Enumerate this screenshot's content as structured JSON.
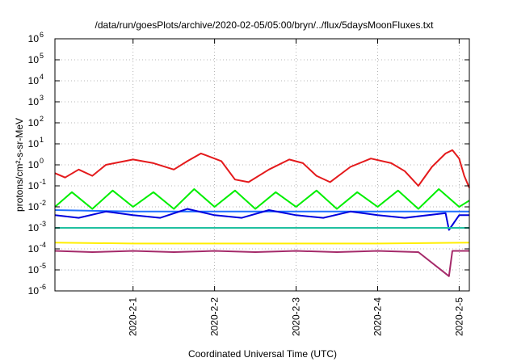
{
  "chart_data": {
    "type": "line",
    "title": "/data/run/goesPlots/archive/2020-02-05/05:00/bryn/../flux/5daysMoonFluxes.txt",
    "xlabel": "Coordinated Universal Time (UTC)",
    "ylabel": "protons/cm²-s-sr-MeV",
    "yscale": "log",
    "xlim": [
      "2020-01-31T01:00",
      "2020-02-05T03:00"
    ],
    "ylim": [
      1e-06,
      1000000.0
    ],
    "y_ticks": [
      {
        "base": "10",
        "exp": "-6"
      },
      {
        "base": "10",
        "exp": "-5"
      },
      {
        "base": "10",
        "exp": "-4"
      },
      {
        "base": "10",
        "exp": "-3"
      },
      {
        "base": "10",
        "exp": "-2"
      },
      {
        "base": "10",
        "exp": "-1"
      },
      {
        "base": "10",
        "exp": "0"
      },
      {
        "base": "10",
        "exp": "1"
      },
      {
        "base": "10",
        "exp": "2"
      },
      {
        "base": "10",
        "exp": "3"
      },
      {
        "base": "10",
        "exp": "4"
      },
      {
        "base": "10",
        "exp": "5"
      },
      {
        "base": "10",
        "exp": "6"
      }
    ],
    "x_ticks": [
      "2020-2-1",
      "2020-2-2",
      "2020-2-3",
      "2020-2-4",
      "2020-2-5"
    ],
    "grid": true,
    "legend": "none",
    "series": [
      {
        "color": "#e41a1c",
        "values": [
          [
            "2020-01-31T01:00",
            0.4
          ],
          [
            "2020-01-31T04:00",
            0.25
          ],
          [
            "2020-01-31T08:00",
            0.6
          ],
          [
            "2020-01-31T12:00",
            0.3
          ],
          [
            "2020-01-31T16:00",
            1.0
          ],
          [
            "2020-02-01T00:00",
            1.8
          ],
          [
            "2020-02-01T06:00",
            1.2
          ],
          [
            "2020-02-01T12:00",
            0.6
          ],
          [
            "2020-02-01T16:00",
            1.5
          ],
          [
            "2020-02-01T20:00",
            3.5
          ],
          [
            "2020-02-02T02:00",
            1.5
          ],
          [
            "2020-02-02T06:00",
            0.2
          ],
          [
            "2020-02-02T10:00",
            0.15
          ],
          [
            "2020-02-02T16:00",
            0.6
          ],
          [
            "2020-02-02T22:00",
            1.8
          ],
          [
            "2020-02-03T02:00",
            1.2
          ],
          [
            "2020-02-03T06:00",
            0.3
          ],
          [
            "2020-02-03T10:00",
            0.15
          ],
          [
            "2020-02-03T16:00",
            0.8
          ],
          [
            "2020-02-03T22:00",
            2.0
          ],
          [
            "2020-02-04T04:00",
            1.2
          ],
          [
            "2020-02-04T08:00",
            0.5
          ],
          [
            "2020-02-04T12:00",
            0.1
          ],
          [
            "2020-02-04T16:00",
            0.8
          ],
          [
            "2020-02-04T20:00",
            3.5
          ],
          [
            "2020-02-04T22:00",
            5.0
          ],
          [
            "2020-02-05T00:00",
            2.0
          ],
          [
            "2020-02-05T01:30",
            0.3
          ],
          [
            "2020-02-05T03:00",
            0.08
          ]
        ]
      },
      {
        "color": "#00ee00",
        "values": [
          [
            "2020-01-31T01:00",
            0.01
          ],
          [
            "2020-01-31T06:00",
            0.05
          ],
          [
            "2020-01-31T12:00",
            0.008
          ],
          [
            "2020-01-31T18:00",
            0.06
          ],
          [
            "2020-02-01T00:00",
            0.01
          ],
          [
            "2020-02-01T06:00",
            0.05
          ],
          [
            "2020-02-01T12:00",
            0.008
          ],
          [
            "2020-02-01T18:00",
            0.07
          ],
          [
            "2020-02-02T00:00",
            0.01
          ],
          [
            "2020-02-02T06:00",
            0.06
          ],
          [
            "2020-02-02T12:00",
            0.008
          ],
          [
            "2020-02-02T18:00",
            0.05
          ],
          [
            "2020-02-03T00:00",
            0.01
          ],
          [
            "2020-02-03T06:00",
            0.06
          ],
          [
            "2020-02-03T12:00",
            0.008
          ],
          [
            "2020-02-03T18:00",
            0.05
          ],
          [
            "2020-02-04T00:00",
            0.01
          ],
          [
            "2020-02-04T06:00",
            0.06
          ],
          [
            "2020-02-04T12:00",
            0.008
          ],
          [
            "2020-02-04T18:00",
            0.07
          ],
          [
            "2020-02-05T00:00",
            0.01
          ],
          [
            "2020-02-05T03:00",
            0.02
          ]
        ]
      },
      {
        "color": "#1f6fff",
        "values": [
          [
            "2020-01-31T01:00",
            0.007
          ],
          [
            "2020-02-01T00:00",
            0.006
          ],
          [
            "2020-02-02T00:00",
            0.006
          ],
          [
            "2020-02-03T00:00",
            0.006
          ],
          [
            "2020-02-04T00:00",
            0.006
          ],
          [
            "2020-02-05T03:00",
            0.006
          ]
        ]
      },
      {
        "color": "#0000dd",
        "values": [
          [
            "2020-01-31T01:00",
            0.004
          ],
          [
            "2020-01-31T08:00",
            0.003
          ],
          [
            "2020-01-31T16:00",
            0.006
          ],
          [
            "2020-02-01T00:00",
            0.004
          ],
          [
            "2020-02-01T08:00",
            0.003
          ],
          [
            "2020-02-01T16:00",
            0.008
          ],
          [
            "2020-02-02T00:00",
            0.004
          ],
          [
            "2020-02-02T08:00",
            0.003
          ],
          [
            "2020-02-02T16:00",
            0.007
          ],
          [
            "2020-02-03T00:00",
            0.004
          ],
          [
            "2020-02-03T08:00",
            0.003
          ],
          [
            "2020-02-03T16:00",
            0.006
          ],
          [
            "2020-02-04T00:00",
            0.004
          ],
          [
            "2020-02-04T08:00",
            0.003
          ],
          [
            "2020-02-04T20:00",
            0.005
          ],
          [
            "2020-02-04T21:00",
            0.0008
          ],
          [
            "2020-02-05T00:00",
            0.004
          ],
          [
            "2020-02-05T03:00",
            0.004
          ]
        ]
      },
      {
        "color": "#20c0a0",
        "values": [
          [
            "2020-01-31T01:00",
            0.001
          ],
          [
            "2020-02-01T00:00",
            0.001
          ],
          [
            "2020-02-02T00:00",
            0.001
          ],
          [
            "2020-02-03T00:00",
            0.001
          ],
          [
            "2020-02-04T00:00",
            0.001
          ],
          [
            "2020-02-05T03:00",
            0.001
          ]
        ]
      },
      {
        "color": "#ffee00",
        "values": [
          [
            "2020-01-31T01:00",
            0.0002
          ],
          [
            "2020-02-01T00:00",
            0.00018
          ],
          [
            "2020-02-02T00:00",
            0.00018
          ],
          [
            "2020-02-03T00:00",
            0.00018
          ],
          [
            "2020-02-04T00:00",
            0.00018
          ],
          [
            "2020-02-05T03:00",
            0.0002
          ]
        ]
      },
      {
        "color": "#a52a6a",
        "values": [
          [
            "2020-01-31T01:00",
            8e-05
          ],
          [
            "2020-01-31T12:00",
            7e-05
          ],
          [
            "2020-02-01T00:00",
            8e-05
          ],
          [
            "2020-02-01T12:00",
            7e-05
          ],
          [
            "2020-02-02T00:00",
            8e-05
          ],
          [
            "2020-02-02T12:00",
            7e-05
          ],
          [
            "2020-02-03T00:00",
            8e-05
          ],
          [
            "2020-02-03T12:00",
            7e-05
          ],
          [
            "2020-02-04T00:00",
            8e-05
          ],
          [
            "2020-02-04T12:00",
            7e-05
          ],
          [
            "2020-02-04T21:00",
            5e-06
          ],
          [
            "2020-02-04T22:00",
            8e-05
          ],
          [
            "2020-02-05T03:00",
            8e-05
          ]
        ]
      }
    ]
  }
}
